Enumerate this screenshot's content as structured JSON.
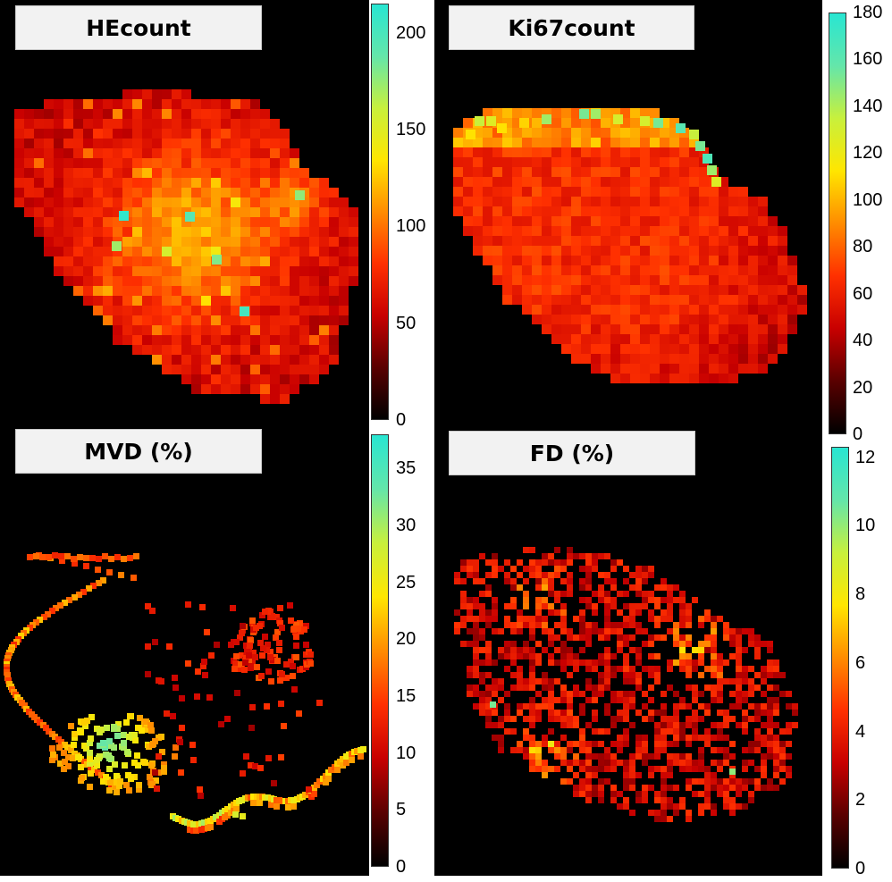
{
  "colormap": [
    "#000000",
    "#5a0000",
    "#c80000",
    "#ff3000",
    "#ff8c00",
    "#ffe600",
    "#c8f03c",
    "#64e6aa",
    "#28e6d2"
  ],
  "chart_data": [
    {
      "type": "heatmap",
      "title": "HEcount",
      "colorbar": {
        "range": [
          0,
          215
        ],
        "ticks": [
          0,
          50,
          100,
          150,
          200
        ]
      },
      "seed": 11
    },
    {
      "type": "heatmap",
      "title": "Ki67count",
      "colorbar": {
        "range": [
          0,
          180
        ],
        "ticks": [
          0,
          20,
          40,
          60,
          80,
          100,
          120,
          140,
          160,
          180
        ]
      },
      "seed": 23
    },
    {
      "type": "heatmap",
      "title": "MVD (%)",
      "colorbar": {
        "range": [
          0,
          38
        ],
        "ticks": [
          0,
          5,
          10,
          15,
          20,
          25,
          30,
          35
        ]
      },
      "seed": 37
    },
    {
      "type": "heatmap",
      "title": "FD (%)",
      "colorbar": {
        "range": [
          0,
          12.3
        ],
        "ticks": [
          0,
          2,
          4,
          6,
          8,
          10,
          12
        ]
      },
      "seed": 53
    }
  ]
}
